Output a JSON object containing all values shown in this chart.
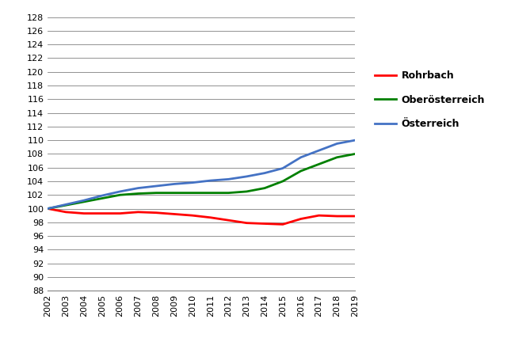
{
  "years": [
    2002,
    2003,
    2004,
    2005,
    2006,
    2007,
    2008,
    2009,
    2010,
    2011,
    2012,
    2013,
    2014,
    2015,
    2016,
    2017,
    2018,
    2019
  ],
  "rohrbach": [
    100.0,
    99.5,
    99.3,
    99.3,
    99.3,
    99.5,
    99.4,
    99.2,
    99.0,
    98.7,
    98.3,
    97.9,
    97.8,
    97.7,
    98.5,
    99.0,
    98.9,
    98.9
  ],
  "oberoesterreich": [
    100.0,
    100.5,
    101.0,
    101.5,
    102.0,
    102.2,
    102.3,
    102.3,
    102.3,
    102.3,
    102.3,
    102.5,
    103.0,
    104.0,
    105.5,
    106.5,
    107.5,
    108.0
  ],
  "oesterreich": [
    100.0,
    100.6,
    101.2,
    101.9,
    102.5,
    103.0,
    103.3,
    103.6,
    103.8,
    104.1,
    104.3,
    104.7,
    105.2,
    105.9,
    107.5,
    108.5,
    109.5,
    110.0
  ],
  "rohrbach_color": "#ff0000",
  "oberoesterreich_color": "#008000",
  "oesterreich_color": "#4472c4",
  "line_width": 2.0,
  "ylim": [
    88,
    128
  ],
  "yticks": [
    88,
    90,
    92,
    94,
    96,
    98,
    100,
    102,
    104,
    106,
    108,
    110,
    112,
    114,
    116,
    118,
    120,
    122,
    124,
    126,
    128
  ],
  "legend_labels": [
    "Rohrbach",
    "Oberösterreich",
    "Österreich"
  ],
  "background_color": "#ffffff",
  "grid_color": "#808080",
  "tick_fontsize": 8,
  "legend_fontsize": 9
}
